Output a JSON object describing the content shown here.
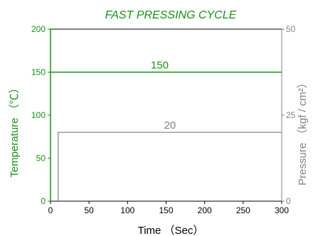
{
  "chart_data": {
    "type": "line",
    "title": "FAST PRESSING CYCLE",
    "xlabel": "Time （Sec）",
    "ylabel_left": "Temperature （℃）",
    "ylabel_right": "Pressure （kgf / cm²）",
    "xlim": [
      0,
      300
    ],
    "ylim_left": [
      0,
      200
    ],
    "ylim_right": [
      0,
      50
    ],
    "x_ticks": [
      "0",
      "50",
      "100",
      "150",
      "200",
      "250",
      "300"
    ],
    "y_left_ticks": [
      "0",
      "50",
      "100",
      "150",
      "200"
    ],
    "y_right_ticks": [
      "0",
      "25",
      "50"
    ],
    "grid": false,
    "series": [
      {
        "axis": "left",
        "color": "#1a8f1a",
        "label": "150",
        "points": [
          [
            0,
            150
          ],
          [
            300,
            150
          ]
        ]
      },
      {
        "axis": "right",
        "color": "#808080",
        "label": "20",
        "points": [
          [
            10,
            0
          ],
          [
            10,
            20
          ],
          [
            300,
            20
          ]
        ]
      }
    ],
    "colors": {
      "temperature": "#1a8f1a",
      "pressure": "#808080",
      "axis": "#000000"
    }
  }
}
